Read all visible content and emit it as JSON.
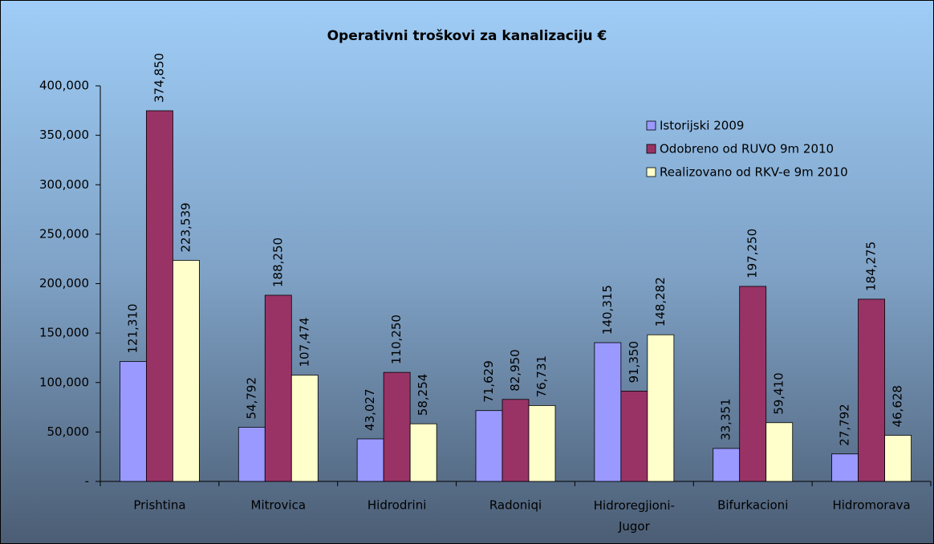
{
  "chart_data": {
    "type": "bar",
    "title": "Operativni troškovi za kanalizaciju €",
    "categories": [
      "Prishtina",
      "Mitrovica",
      "Hidrodrini",
      "Radoniqi",
      "Hidroregjioni-Jugor",
      "Bifurkacioni",
      "Hidromorava"
    ],
    "series": [
      {
        "name": "Istorijski 2009",
        "color": "#9999ff",
        "values": [
          121310,
          54792,
          43027,
          71629,
          140315,
          33351,
          27792
        ],
        "value_labels": [
          "121,310",
          "54,792",
          "43,027",
          "71,629",
          "140,315",
          "33,351",
          "27,792"
        ]
      },
      {
        "name": "Odobreno od RUVO 9m 2010",
        "color": "#993366",
        "values": [
          374850,
          188250,
          110250,
          82950,
          91350,
          197250,
          184275
        ],
        "value_labels": [
          "374,850",
          "188,250",
          "110,250",
          "82,950",
          "91,350",
          "197,250",
          "184,275"
        ]
      },
      {
        "name": "Realizovano od RKV-e 9m 2010",
        "color": "#ffffcc",
        "values": [
          223539,
          107474,
          58254,
          76731,
          148282,
          59410,
          46628
        ],
        "value_labels": [
          "223,539",
          "107,474",
          "58,254",
          "76,731",
          "148,282",
          "59,410",
          "46,628"
        ]
      }
    ],
    "ylim": [
      0,
      400000
    ],
    "yticks": [
      {
        "value": 0,
        "label": "-"
      },
      {
        "value": 50000,
        "label": "50,000"
      },
      {
        "value": 100000,
        "label": "100,000"
      },
      {
        "value": 150000,
        "label": "150,000"
      },
      {
        "value": 200000,
        "label": "200,000"
      },
      {
        "value": 250000,
        "label": "250,000"
      },
      {
        "value": 300000,
        "label": "300,000"
      },
      {
        "value": 350000,
        "label": "350,000"
      },
      {
        "value": 400000,
        "label": "400,000"
      }
    ],
    "legend": "upper right",
    "grid": false
  }
}
